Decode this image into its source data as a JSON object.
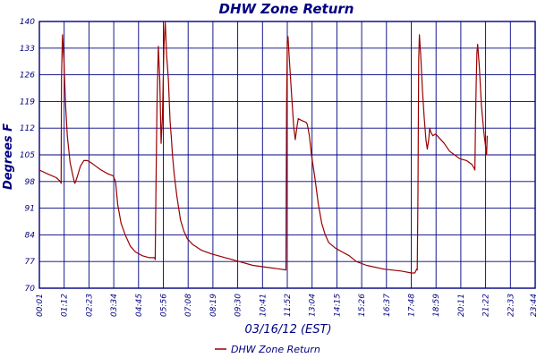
{
  "chart_data": {
    "type": "line",
    "title": "DHW Zone Return",
    "xlabel": "03/16/12 (EST)",
    "ylabel": "Degrees F",
    "ylim": [
      70,
      140
    ],
    "yticks": [
      "70",
      "77",
      "84",
      "91",
      "98",
      "105",
      "112",
      "119",
      "126",
      "133",
      "140"
    ],
    "xtick_labels": [
      "00:01",
      "01:12",
      "02:23",
      "03:34",
      "04:45",
      "05:56",
      "07:08",
      "08:19",
      "09:30",
      "10:41",
      "11:52",
      "13:04",
      "14:15",
      "15:26",
      "16:37",
      "17:48",
      "18:59",
      "20:11",
      "21:22",
      "22:33",
      "23:44"
    ],
    "x_range_minutes": [
      1,
      1439
    ],
    "grid": true,
    "legend": "bottom-center",
    "series": [
      {
        "name": "DHW Zone Return",
        "color": "#990000",
        "points": [
          [
            1,
            101
          ],
          [
            25,
            100
          ],
          [
            50,
            99
          ],
          [
            62,
            98
          ],
          [
            64,
            97.5
          ],
          [
            65,
            125
          ],
          [
            68,
            136.5
          ],
          [
            72,
            130
          ],
          [
            77,
            118
          ],
          [
            82,
            110
          ],
          [
            90,
            103
          ],
          [
            97,
            100
          ],
          [
            102,
            98
          ],
          [
            104,
            97.5
          ],
          [
            110,
            99
          ],
          [
            120,
            102
          ],
          [
            130,
            103.5
          ],
          [
            140,
            103.5
          ],
          [
            150,
            103
          ],
          [
            165,
            102
          ],
          [
            180,
            101
          ],
          [
            200,
            100
          ],
          [
            215,
            99.5
          ],
          [
            222,
            98
          ],
          [
            228,
            92
          ],
          [
            238,
            87
          ],
          [
            250,
            84
          ],
          [
            265,
            81
          ],
          [
            280,
            79.5
          ],
          [
            300,
            78.5
          ],
          [
            320,
            78
          ],
          [
            335,
            78
          ],
          [
            337,
            77.5
          ],
          [
            339,
            95
          ],
          [
            342,
            118
          ],
          [
            346,
            133.5
          ],
          [
            350,
            125
          ],
          [
            354,
            108
          ],
          [
            358,
            115
          ],
          [
            362,
            133
          ],
          [
            366,
            140
          ],
          [
            370,
            131
          ],
          [
            375,
            125
          ],
          [
            380,
            114
          ],
          [
            384,
            109
          ],
          [
            387,
            105
          ],
          [
            392,
            100
          ],
          [
            400,
            94
          ],
          [
            410,
            88
          ],
          [
            420,
            85
          ],
          [
            430,
            83
          ],
          [
            445,
            81.5
          ],
          [
            470,
            80
          ],
          [
            500,
            79
          ],
          [
            540,
            78
          ],
          [
            580,
            77
          ],
          [
            620,
            76
          ],
          [
            660,
            75.5
          ],
          [
            700,
            75
          ],
          [
            716,
            74.8
          ],
          [
            717,
            94
          ],
          [
            718,
            117
          ],
          [
            720,
            135
          ],
          [
            722,
            136
          ],
          [
            726,
            130
          ],
          [
            733,
            120
          ],
          [
            739,
            112
          ],
          [
            743,
            109
          ],
          [
            749,
            113
          ],
          [
            752,
            114.5
          ],
          [
            762,
            114
          ],
          [
            775,
            113.5
          ],
          [
            778,
            113
          ],
          [
            784,
            110
          ],
          [
            790,
            105
          ],
          [
            800,
            99
          ],
          [
            810,
            92
          ],
          [
            820,
            87
          ],
          [
            830,
            84
          ],
          [
            840,
            82
          ],
          [
            860,
            80.5
          ],
          [
            880,
            79.5
          ],
          [
            900,
            78.5
          ],
          [
            920,
            77
          ],
          [
            950,
            76
          ],
          [
            1000,
            75
          ],
          [
            1050,
            74.5
          ],
          [
            1080,
            74
          ],
          [
            1090,
            74
          ],
          [
            1095,
            75
          ],
          [
            1097,
            74.8
          ],
          [
            1099,
            95
          ],
          [
            1101,
            130
          ],
          [
            1103,
            136.5
          ],
          [
            1107,
            131
          ],
          [
            1112,
            122
          ],
          [
            1117,
            115
          ],
          [
            1122,
            109
          ],
          [
            1126,
            106.5
          ],
          [
            1130,
            109
          ],
          [
            1133,
            112
          ],
          [
            1136,
            111
          ],
          [
            1142,
            110
          ],
          [
            1150,
            110.5
          ],
          [
            1160,
            109.5
          ],
          [
            1175,
            108
          ],
          [
            1190,
            106
          ],
          [
            1205,
            105
          ],
          [
            1220,
            104
          ],
          [
            1240,
            103.5
          ],
          [
            1255,
            102.5
          ],
          [
            1262,
            101.5
          ],
          [
            1264,
            101
          ],
          [
            1266,
            115
          ],
          [
            1268,
            124
          ],
          [
            1270,
            132
          ],
          [
            1272,
            134
          ],
          [
            1277,
            128
          ],
          [
            1283,
            118
          ],
          [
            1290,
            111
          ],
          [
            1298,
            105
          ],
          [
            1300,
            110
          ]
        ]
      }
    ]
  }
}
